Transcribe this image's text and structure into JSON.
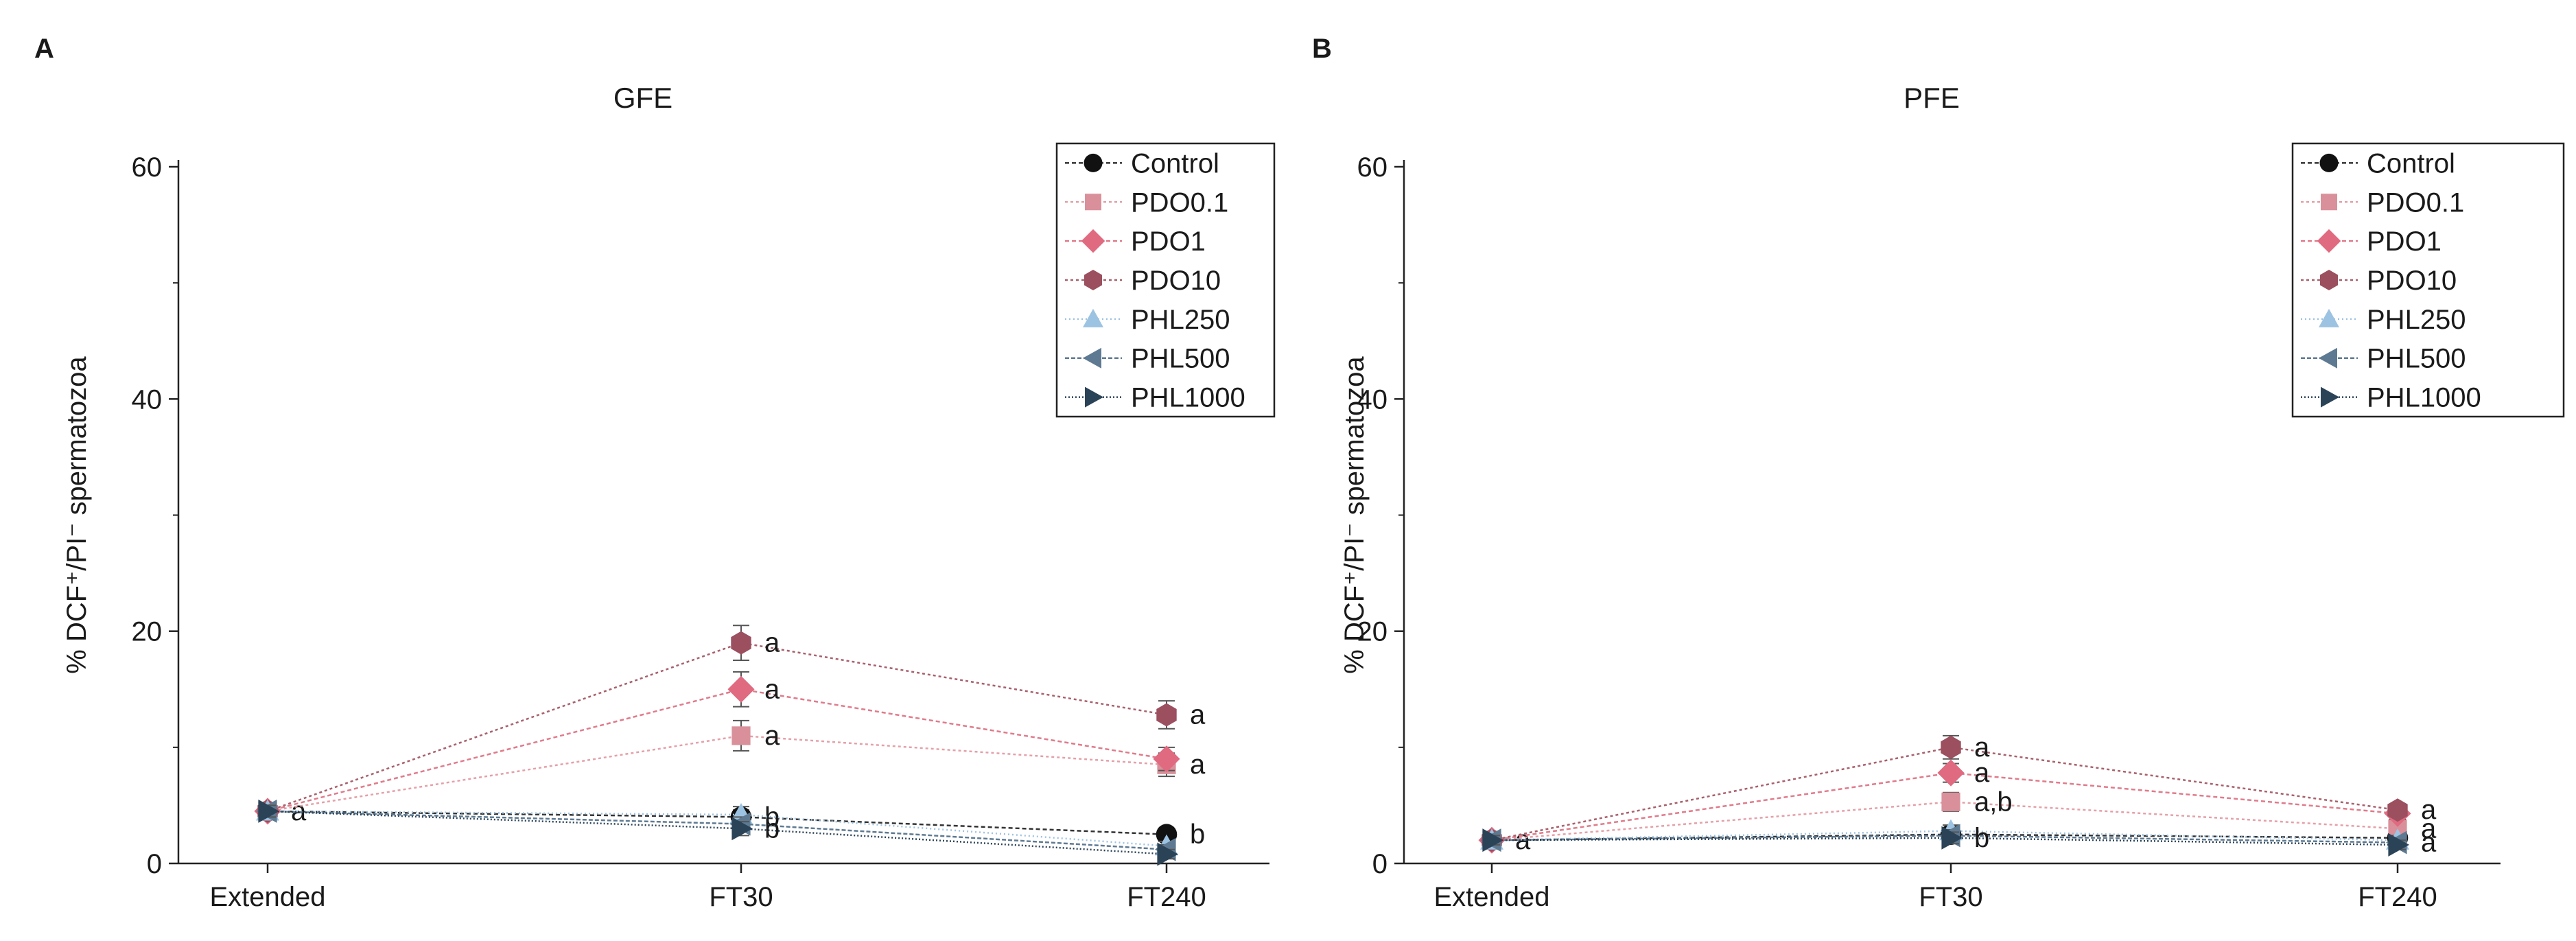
{
  "chart_data": [
    {
      "type": "line",
      "panel_label": "A",
      "title": "GFE",
      "xlabel": "",
      "ylabel": "% DCF⁺/PI⁻ spermatozoa",
      "ylim": [
        0,
        60
      ],
      "yticks": [
        0,
        20,
        40,
        60
      ],
      "categories": [
        "Extended",
        "FT30",
        "FT240"
      ],
      "legend_position": "top-right",
      "series": [
        {
          "name": "Control",
          "marker": "circle",
          "color": "#111111",
          "line_color": "#333333",
          "values": [
            4.5,
            4.0,
            2.5
          ],
          "errors": [
            0.5,
            0.6,
            0.5
          ],
          "labels": [
            "a",
            "b",
            "b"
          ]
        },
        {
          "name": "PDO0.1",
          "marker": "square",
          "color": "#d9909a",
          "line_color": "#e4a0a8",
          "values": [
            4.5,
            11.0,
            8.5
          ],
          "errors": [
            0.5,
            1.3,
            1.0
          ],
          "labels": [
            "",
            "a",
            "a"
          ]
        },
        {
          "name": "PDO1",
          "marker": "diamond",
          "color": "#e06a80",
          "line_color": "#e07b8b",
          "values": [
            4.5,
            15.0,
            9.0
          ],
          "errors": [
            0.5,
            1.5,
            1.0
          ],
          "labels": [
            "",
            "a",
            ""
          ]
        },
        {
          "name": "PDO10",
          "marker": "hexagon",
          "color": "#9c4f5e",
          "line_color": "#a8606c",
          "values": [
            4.5,
            19.0,
            12.8
          ],
          "errors": [
            0.5,
            1.5,
            1.2
          ],
          "labels": [
            "",
            "a",
            "a"
          ]
        },
        {
          "name": "PHL250",
          "marker": "triangle-up",
          "color": "#9dc3e2",
          "line_color": "#9dc3e2",
          "values": [
            4.5,
            4.2,
            1.5
          ],
          "errors": [
            0.5,
            0.7,
            0.4
          ],
          "labels": [
            "",
            "",
            ""
          ]
        },
        {
          "name": "PHL500",
          "marker": "triangle-left",
          "color": "#5e7a92",
          "line_color": "#5e7a92",
          "values": [
            4.5,
            3.4,
            1.2
          ],
          "errors": [
            0.5,
            0.6,
            0.4
          ],
          "labels": [
            "",
            "",
            ""
          ]
        },
        {
          "name": "PHL1000",
          "marker": "triangle-right",
          "color": "#2b4357",
          "line_color": "#2b4357",
          "values": [
            4.5,
            3.0,
            0.8
          ],
          "errors": [
            0.5,
            0.6,
            0.4
          ],
          "labels": [
            "",
            "b",
            ""
          ]
        }
      ]
    },
    {
      "type": "line",
      "panel_label": "B",
      "title": "PFE",
      "xlabel": "",
      "ylabel": "% DCF⁺/PI⁻ spermatozoa",
      "ylim": [
        0,
        60
      ],
      "yticks": [
        0,
        20,
        40,
        60
      ],
      "categories": [
        "Extended",
        "FT30",
        "FT240"
      ],
      "legend_position": "top-right",
      "series": [
        {
          "name": "Control",
          "marker": "circle",
          "color": "#111111",
          "line_color": "#333333",
          "values": [
            2.0,
            2.5,
            2.2
          ],
          "errors": [
            0.4,
            0.5,
            0.4
          ],
          "labels": [
            "a",
            "",
            ""
          ]
        },
        {
          "name": "PDO0.1",
          "marker": "square",
          "color": "#d9909a",
          "line_color": "#e4a0a8",
          "values": [
            2.0,
            5.3,
            3.0
          ],
          "errors": [
            0.4,
            0.8,
            0.5
          ],
          "labels": [
            "",
            "a,b",
            "a"
          ]
        },
        {
          "name": "PDO1",
          "marker": "diamond",
          "color": "#e06a80",
          "line_color": "#e07b8b",
          "values": [
            2.0,
            7.8,
            4.3
          ],
          "errors": [
            0.4,
            0.8,
            0.5
          ],
          "labels": [
            "",
            "a",
            ""
          ]
        },
        {
          "name": "PDO10",
          "marker": "hexagon",
          "color": "#9c4f5e",
          "line_color": "#a8606c",
          "values": [
            2.0,
            10.0,
            4.6
          ],
          "errors": [
            0.4,
            1.0,
            0.5
          ],
          "labels": [
            "",
            "a",
            "a"
          ]
        },
        {
          "name": "PHL250",
          "marker": "triangle-up",
          "color": "#9dc3e2",
          "line_color": "#9dc3e2",
          "values": [
            2.0,
            2.8,
            2.0
          ],
          "errors": [
            0.4,
            0.5,
            0.4
          ],
          "labels": [
            "",
            "",
            ""
          ]
        },
        {
          "name": "PHL500",
          "marker": "triangle-left",
          "color": "#5e7a92",
          "line_color": "#5e7a92",
          "values": [
            2.0,
            2.4,
            1.8
          ],
          "errors": [
            0.4,
            0.5,
            0.4
          ],
          "labels": [
            "",
            "",
            "a"
          ]
        },
        {
          "name": "PHL1000",
          "marker": "triangle-right",
          "color": "#2b4357",
          "line_color": "#2b4357",
          "values": [
            2.0,
            2.2,
            1.6
          ],
          "errors": [
            0.4,
            0.5,
            0.4
          ],
          "labels": [
            "",
            "b",
            ""
          ]
        }
      ]
    }
  ]
}
